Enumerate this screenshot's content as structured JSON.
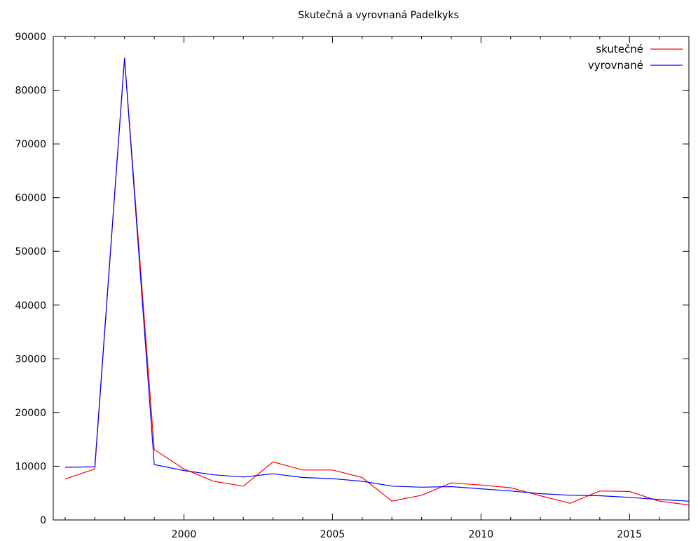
{
  "chart_data": {
    "type": "line",
    "title": "Skutečná a vyrovnaná Padelkyks",
    "xlabel": "",
    "ylabel": "",
    "xlim": [
      1995.6,
      2017.0
    ],
    "ylim": [
      0,
      90000
    ],
    "x_ticks": [
      2000,
      2005,
      2010,
      2015
    ],
    "y_ticks": [
      0,
      10000,
      20000,
      30000,
      40000,
      50000,
      60000,
      70000,
      80000,
      90000
    ],
    "grid": false,
    "legend_position": "top-right",
    "x": [
      1996,
      1997,
      1998,
      1999,
      2000,
      2001,
      2002,
      2003,
      2004,
      2005,
      2006,
      2007,
      2008,
      2009,
      2010,
      2011,
      2012,
      2013,
      2014,
      2015,
      2016,
      2017
    ],
    "series": [
      {
        "name": "skutečné",
        "color": "#ff0000",
        "values": [
          7600,
          9500,
          86000,
          13100,
          9500,
          7200,
          6300,
          10800,
          9300,
          9300,
          7900,
          3500,
          4600,
          6900,
          6500,
          6000,
          4500,
          3100,
          5400,
          5300,
          3500,
          2800
        ]
      },
      {
        "name": "vyrovnané",
        "color": "#0000ff",
        "values": [
          9800,
          9900,
          86000,
          10300,
          9200,
          8400,
          8000,
          8600,
          7900,
          7700,
          7200,
          6300,
          6100,
          6200,
          5800,
          5400,
          4900,
          4600,
          4500,
          4200,
          3800,
          3500
        ]
      }
    ]
  }
}
